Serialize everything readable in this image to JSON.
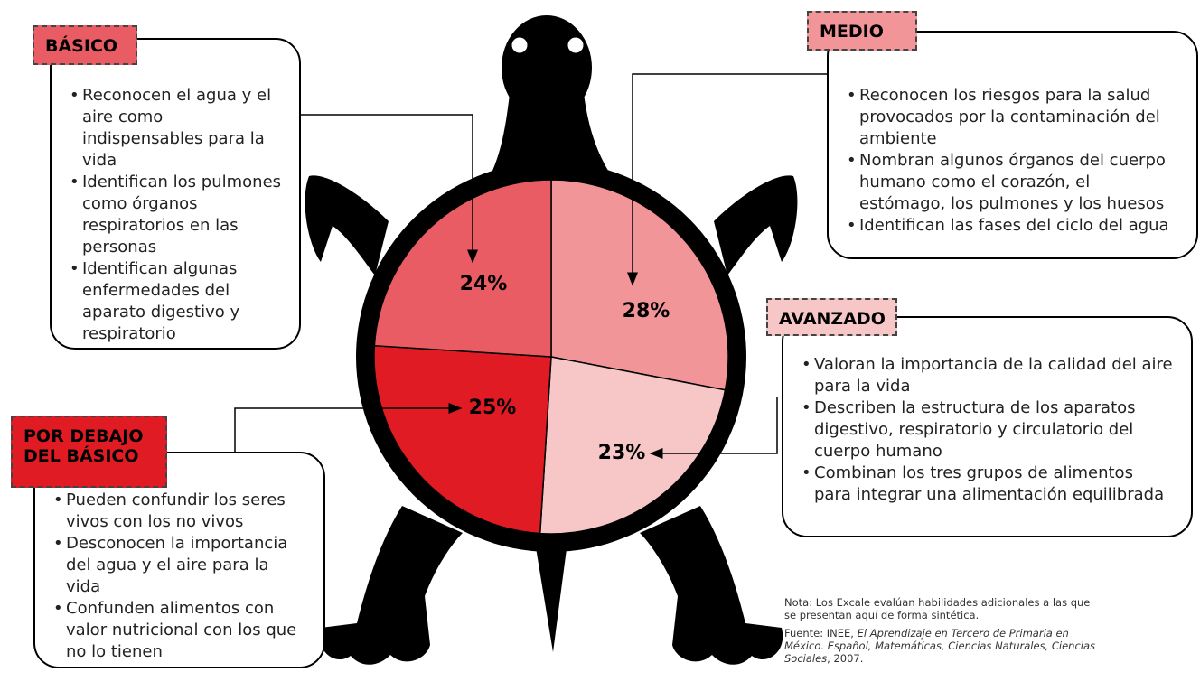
{
  "chart_data": {
    "type": "pie",
    "categories": [
      "MEDIO",
      "AVANZADO",
      "POR DEBAJO\nDEL BÁSICO",
      "BÁSICO"
    ],
    "values": [
      28,
      23,
      25,
      24
    ],
    "value_labels": [
      "28%",
      "23%",
      "25%",
      "24%"
    ],
    "colors": [
      "#f19599",
      "#f7c7c8",
      "#e01b24",
      "#e95c63"
    ],
    "descriptions": [
      [
        "Reconocen los riesgos para la salud provocados por la contaminación del ambiente",
        "Nombran algunos órganos del cuerpo humano como el corazón, el estómago, los pulmones y los huesos",
        "Identifican las fases del ciclo del agua"
      ],
      [
        "Valoran la importancia de la calidad del aire para la vida",
        "Describen la estructura de los aparatos digestivo, respiratorio y circulatorio del cuerpo humano",
        "Combinan los tres grupos de alimentos para integrar una alimentación equilibrada"
      ],
      [
        "Pueden confundir los seres vivos con los no vivos",
        "Desconocen la importancia del agua y el aire para la vida",
        "Confunden alimentos con valor nutricional con los que no lo tienen"
      ],
      [
        "Reconocen el agua y el aire como indispensables para la vida",
        "Identifican los pulmones como órganos respiratorios en las personas",
        "Identifican algunas enfermedades del aparato digestivo y respiratorio"
      ]
    ],
    "note": "Nota: Los Excale evalúan habilidades adicionales a las que se presentan aquí de forma sintética.",
    "source": {
      "prefix": "Fuente: INEE, ",
      "work": "El Aprendizaje en Tercero de Primaria en México. Español, Matemáticas, Ciencias Naturales, Ciencias Sociales",
      "suffix": ", 2007."
    }
  }
}
